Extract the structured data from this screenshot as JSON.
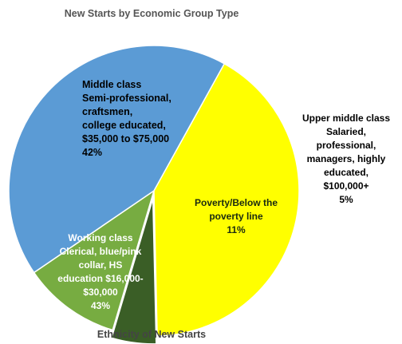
{
  "chart_data": {
    "type": "pie",
    "title": "New Starts by Economic Group Type",
    "footer_text": "Ethnicity of New Starts",
    "slices": [
      {
        "label_lines": [
          "Middle class",
          "Semi-professional,",
          "craftsmen,",
          "college educated,",
          "$35,000 to $75,000",
          "42%"
        ],
        "value": 42,
        "color": "#ffff00"
      },
      {
        "label_lines": [
          "Upper middle class",
          "Salaried,",
          "professional,",
          "managers, highly",
          "educated,",
          "$100,000+",
          "5%"
        ],
        "value": 5,
        "color": "#3a5e26"
      },
      {
        "label_lines": [
          "Poverty/Below the",
          "poverty line",
          "11%"
        ],
        "value": 11,
        "color": "#77ac41"
      },
      {
        "label_lines": [
          "Working class",
          "Clerical, blue/pink",
          "collar, HS",
          "education $16,000-",
          "$30,000",
          "43%"
        ],
        "value": 43,
        "color": "#5b9bd5"
      }
    ],
    "legend": "none"
  }
}
